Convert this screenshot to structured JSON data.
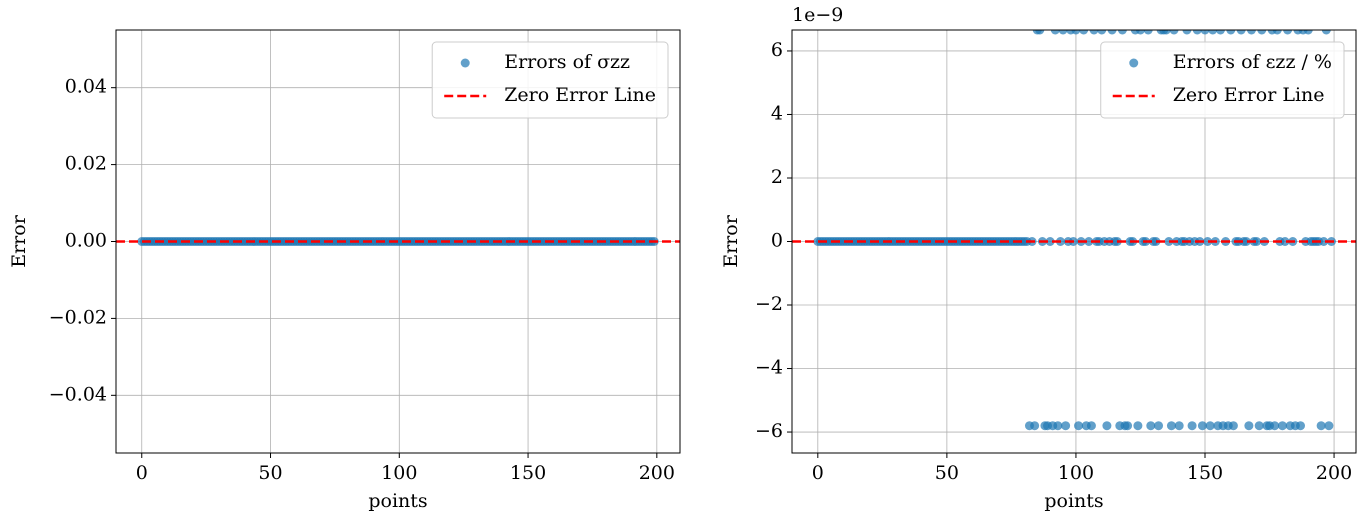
{
  "chart_data": [
    {
      "type": "scatter",
      "xlabel": "points",
      "ylabel": "Error",
      "xlim": [
        -10,
        209
      ],
      "xticks": [
        0,
        50,
        100,
        150,
        200
      ],
      "ylim": [
        -0.055,
        0.055
      ],
      "yticks": [
        {
          "value": -0.04,
          "label": "−0.04"
        },
        {
          "value": -0.02,
          "label": "−0.02"
        },
        {
          "value": 0,
          "label": "0.00"
        },
        0.02,
        0.04
      ],
      "grid": true,
      "legend": "upper right",
      "series": [
        {
          "name": "Errors of σzz",
          "color": "#1f77b4",
          "x": [
            0,
            1,
            2,
            3,
            4,
            5,
            6,
            7,
            8,
            9,
            10,
            11,
            12,
            13,
            14,
            15,
            16,
            17,
            18,
            19,
            20,
            21,
            22,
            23,
            24,
            25,
            26,
            27,
            28,
            29,
            30,
            31,
            32,
            33,
            34,
            35,
            36,
            37,
            38,
            39,
            40,
            41,
            42,
            43,
            44,
            45,
            46,
            47,
            48,
            49,
            50,
            51,
            52,
            53,
            54,
            55,
            56,
            57,
            58,
            59,
            60,
            61,
            62,
            63,
            64,
            65,
            66,
            67,
            68,
            69,
            70,
            71,
            72,
            73,
            74,
            75,
            76,
            77,
            78,
            79,
            80,
            81,
            82,
            83,
            84,
            85,
            86,
            87,
            88,
            89,
            90,
            91,
            92,
            93,
            94,
            95,
            96,
            97,
            98,
            99,
            100,
            101,
            102,
            103,
            104,
            105,
            106,
            107,
            108,
            109,
            110,
            111,
            112,
            113,
            114,
            115,
            116,
            117,
            118,
            119,
            120,
            121,
            122,
            123,
            124,
            125,
            126,
            127,
            128,
            129,
            130,
            131,
            132,
            133,
            134,
            135,
            136,
            137,
            138,
            139,
            140,
            141,
            142,
            143,
            144,
            145,
            146,
            147,
            148,
            149,
            150,
            151,
            152,
            153,
            154,
            155,
            156,
            157,
            158,
            159,
            160,
            161,
            162,
            163,
            164,
            165,
            166,
            167,
            168,
            169,
            170,
            171,
            172,
            173,
            174,
            175,
            176,
            177,
            178,
            179,
            180,
            181,
            182,
            183,
            184,
            185,
            186,
            187,
            188,
            189,
            190,
            191,
            192,
            193,
            194,
            195,
            196,
            197,
            198,
            199
          ],
          "values": [
            0,
            0,
            0,
            0,
            0,
            0,
            0,
            0,
            0,
            0,
            0,
            0,
            0,
            0,
            0,
            0,
            0,
            0,
            0,
            0,
            0,
            0,
            0,
            0,
            0,
            0,
            0,
            0,
            0,
            0,
            0,
            0,
            0,
            0,
            0,
            0,
            0,
            0,
            0,
            0,
            0,
            0,
            0,
            0,
            0,
            0,
            0,
            0,
            0,
            0,
            0,
            0,
            0,
            0,
            0,
            0,
            0,
            0,
            0,
            0,
            0,
            0,
            0,
            0,
            0,
            0,
            0,
            0,
            0,
            0,
            0,
            0,
            0,
            0,
            0,
            0,
            0,
            0,
            0,
            0,
            0,
            0,
            0,
            0,
            0,
            0,
            0,
            0,
            0,
            0,
            0,
            0,
            0,
            0,
            0,
            0,
            0,
            0,
            0,
            0,
            0,
            0,
            0,
            0,
            0,
            0,
            0,
            0,
            0,
            0,
            0,
            0,
            0,
            0,
            0,
            0,
            0,
            0,
            0,
            0,
            0,
            0,
            0,
            0,
            0,
            0,
            0,
            0,
            0,
            0,
            0,
            0,
            0,
            0,
            0,
            0,
            0,
            0,
            0,
            0,
            0,
            0,
            0,
            0,
            0,
            0,
            0,
            0,
            0,
            0,
            0,
            0,
            0,
            0,
            0,
            0,
            0,
            0,
            0,
            0,
            0,
            0,
            0,
            0,
            0,
            0,
            0,
            0,
            0,
            0,
            0,
            0,
            0,
            0,
            0,
            0,
            0,
            0,
            0,
            0,
            0,
            0,
            0,
            0,
            0,
            0,
            0,
            0,
            0,
            0,
            0,
            0,
            0,
            0,
            0,
            0,
            0,
            0,
            0,
            0
          ]
        }
      ],
      "reference_line": {
        "name": "Zero Error Line",
        "value": 0,
        "color": "#ff0000"
      }
    },
    {
      "type": "scatter",
      "xlabel": "points",
      "ylabel": "Error",
      "offset_text": "1e−9",
      "xlim": [
        -10,
        208.5
      ],
      "xticks": [
        0,
        50,
        100,
        150,
        200
      ],
      "ylim": [
        -6.66,
        6.66
      ],
      "yticks": [
        {
          "value": -6,
          "label": "−6"
        },
        {
          "value": -4,
          "label": "−4"
        },
        {
          "value": -2,
          "label": "−2"
        },
        0,
        2,
        4,
        6
      ],
      "grid": true,
      "legend": "upper right",
      "series": [
        {
          "name": "Errors of εzz / %",
          "color": "#1f77b4",
          "x": [
            0,
            1,
            2,
            3,
            4,
            5,
            6,
            7,
            8,
            9,
            10,
            11,
            12,
            13,
            14,
            15,
            16,
            17,
            18,
            19,
            20,
            21,
            22,
            23,
            24,
            25,
            26,
            27,
            28,
            29,
            30,
            31,
            32,
            33,
            34,
            35,
            36,
            37,
            38,
            39,
            40,
            41,
            42,
            43,
            44,
            45,
            46,
            47,
            48,
            49,
            50,
            51,
            52,
            53,
            54,
            55,
            56,
            57,
            58,
            59,
            60,
            61,
            62,
            63,
            64,
            65,
            66,
            67,
            68,
            69,
            70,
            71,
            72,
            73,
            74,
            75,
            76,
            77,
            78,
            79,
            80,
            81,
            82,
            83,
            84,
            85,
            86,
            87,
            88,
            89,
            90,
            91,
            92,
            93,
            94,
            95,
            96,
            97,
            98,
            99,
            100,
            101,
            102,
            103,
            104,
            105,
            106,
            107,
            108,
            109,
            110,
            111,
            112,
            113,
            114,
            115,
            116,
            117,
            118,
            119,
            120,
            121,
            122,
            123,
            124,
            125,
            126,
            127,
            128,
            129,
            130,
            131,
            132,
            133,
            134,
            135,
            136,
            137,
            138,
            139,
            140,
            141,
            142,
            143,
            144,
            145,
            146,
            147,
            148,
            149,
            150,
            151,
            152,
            153,
            154,
            155,
            156,
            157,
            158,
            159,
            160,
            161,
            162,
            163,
            164,
            165,
            166,
            167,
            168,
            169,
            170,
            171,
            172,
            173,
            174,
            175,
            176,
            177,
            178,
            179,
            180,
            181,
            182,
            183,
            184,
            185,
            186,
            187,
            188,
            189,
            190,
            191,
            192,
            193,
            194,
            195,
            196,
            197,
            198,
            199
          ],
          "values": [
            0,
            0,
            0,
            0,
            0,
            0,
            0,
            0,
            0,
            0,
            0,
            0,
            0,
            0,
            0,
            0,
            0,
            0,
            0,
            0,
            0,
            0,
            0,
            0,
            0,
            0,
            0,
            0,
            0,
            0,
            0,
            0,
            0,
            0,
            0,
            0,
            0,
            0,
            0,
            0,
            0,
            0,
            0,
            0,
            0,
            0,
            0,
            0,
            0,
            0,
            0,
            0,
            0,
            0,
            0,
            0,
            0,
            0,
            0,
            0,
            0,
            0,
            0,
            0,
            0,
            0,
            0,
            0,
            0,
            0,
            0,
            0,
            0,
            0,
            0,
            0,
            0,
            0,
            0,
            0,
            0,
            0,
            -5.8,
            0,
            -5.8,
            6.66,
            6.66,
            0,
            -5.8,
            -5.8,
            0,
            -5.8,
            6.66,
            -5.8,
            0,
            6.66,
            -5.8,
            0,
            6.66,
            0,
            6.66,
            -5.8,
            0,
            6.66,
            -5.8,
            0,
            -5.8,
            6.66,
            0,
            0,
            6.66,
            0,
            -5.8,
            0,
            6.66,
            0,
            0,
            -5.8,
            6.66,
            -5.8,
            -5.8,
            0,
            0,
            6.66,
            -5.8,
            6.66,
            0,
            0,
            6.66,
            -5.8,
            0,
            0,
            -5.8,
            6.66,
            6.66,
            6.66,
            0,
            -5.8,
            6.66,
            0,
            -5.8,
            0,
            0,
            6.66,
            0,
            -5.8,
            0,
            6.66,
            0,
            -5.8,
            6.66,
            0,
            -5.8,
            6.66,
            0,
            -5.8,
            6.66,
            -5.8,
            0,
            -5.8,
            6.66,
            -5.8,
            0,
            0,
            6.66,
            0,
            0,
            -5.8,
            6.66,
            0,
            0,
            -5.8,
            6.66,
            0,
            -5.8,
            -5.8,
            6.66,
            -5.8,
            6.66,
            0,
            -5.8,
            0,
            6.66,
            -5.8,
            0,
            -5.8,
            6.66,
            -5.8,
            6.66,
            0,
            6.66,
            0,
            0,
            0,
            0,
            -5.8,
            0,
            6.66,
            -5.8,
            0
          ]
        }
      ],
      "reference_line": {
        "name": "Zero Error Line",
        "value": 0,
        "color": "#ff0000"
      }
    }
  ]
}
